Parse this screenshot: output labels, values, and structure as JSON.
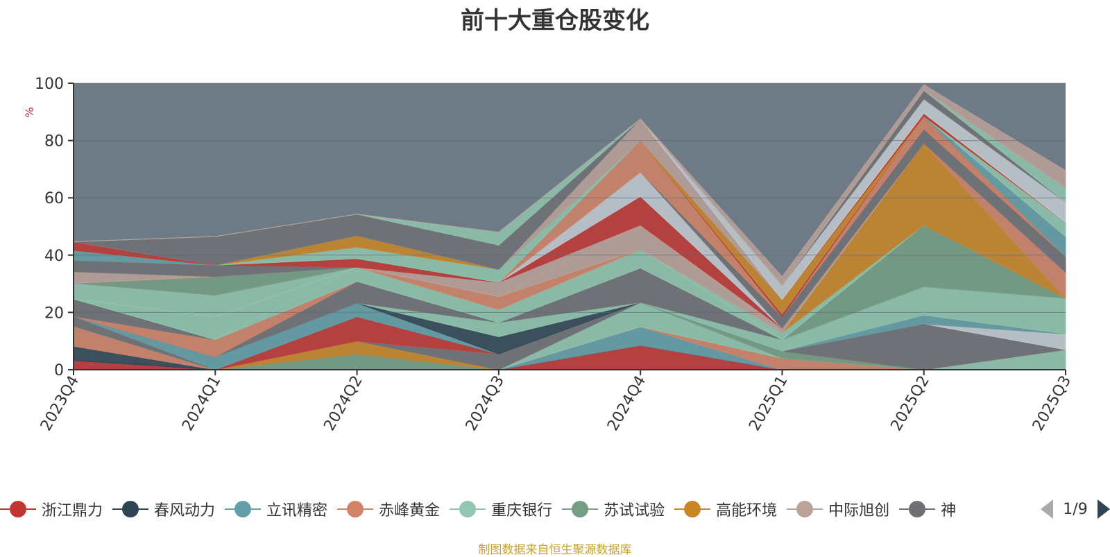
{
  "chart_data": {
    "type": "area",
    "title": "前十大重仓股变化",
    "ylabel": "%",
    "xlabel": "",
    "ylim": [
      0,
      100
    ],
    "yticks": [
      0,
      20,
      40,
      60,
      80,
      100
    ],
    "grid": true,
    "categories": [
      "2023Q4",
      "2024Q1",
      "2024Q2",
      "2024Q3",
      "2024Q4",
      "2025Q1",
      "2025Q2",
      "2025Q3"
    ],
    "series": [
      {
        "name": "浙江鼎力",
        "color": "#c23531",
        "values": [
          3.2,
          0,
          0,
          0,
          8.5,
          0,
          0,
          0
        ]
      },
      {
        "name": "春风动力",
        "color": "#2f4554",
        "values": [
          5.0,
          0,
          0,
          0,
          0,
          0,
          0,
          0
        ]
      },
      {
        "name": "立讯精密",
        "color": "#61a0a8",
        "values": [
          0,
          0,
          0,
          0,
          6.5,
          0,
          0,
          0
        ]
      },
      {
        "name": "赤峰黄金",
        "color": "#d48265",
        "values": [
          7.0,
          0,
          0,
          0,
          0,
          4.0,
          0,
          0
        ]
      },
      {
        "name": "重庆银行",
        "color": "#91c7ae",
        "values": [
          0,
          0,
          0,
          0,
          8.5,
          0,
          0,
          7.0
        ]
      },
      {
        "name": "苏试试验",
        "color": "#749f83",
        "values": [
          0,
          0,
          5.5,
          0,
          0,
          2.5,
          0,
          0
        ]
      },
      {
        "name": "高能环境",
        "color": "#ca8622",
        "values": [
          0,
          0,
          4.5,
          0,
          0,
          0,
          0,
          0
        ]
      },
      {
        "name": "中际旭创",
        "color": "#bda29a",
        "values": [
          0,
          0,
          0,
          0,
          0,
          0,
          0,
          0
        ]
      },
      {
        "name": "",
        "color": "#6e7074",
        "values": [
          3.5,
          0,
          0,
          5.5,
          0,
          0,
          16.0,
          0
        ]
      },
      {
        "name": "",
        "color": "#c4ccd3",
        "values": [
          0,
          0,
          0,
          0,
          0,
          0,
          0,
          5.5
        ]
      },
      {
        "name": "",
        "color": "#c23531",
        "values": [
          0,
          0,
          8.5,
          0,
          0,
          0,
          0,
          0
        ]
      },
      {
        "name": "",
        "color": "#61a0a8",
        "values": [
          0,
          4.5,
          4.8,
          0,
          0,
          0,
          3.0,
          0
        ]
      },
      {
        "name": "",
        "color": "#2f4554",
        "values": [
          0,
          0,
          0,
          6.0,
          0,
          0,
          0,
          0
        ]
      },
      {
        "name": "",
        "color": "#91c7ae",
        "values": [
          0,
          0,
          0,
          5.0,
          0,
          4.0,
          10.0,
          12.5
        ]
      },
      {
        "name": "",
        "color": "#6e7074",
        "values": [
          0,
          0,
          7.5,
          0,
          12.0,
          0,
          0,
          0
        ]
      },
      {
        "name": "",
        "color": "#d48265",
        "values": [
          0,
          6.0,
          0,
          0,
          0,
          0,
          0,
          0
        ]
      },
      {
        "name": "",
        "color": "#6e7074",
        "values": [
          6.0,
          0,
          0,
          0,
          0,
          0,
          0,
          0
        ]
      },
      {
        "name": "",
        "color": "#91c7ae",
        "values": [
          0,
          0,
          5.0,
          4.5,
          6.5,
          0,
          0,
          0
        ]
      },
      {
        "name": "",
        "color": "#749f83",
        "values": [
          0,
          0,
          0,
          0,
          0,
          0,
          21.5,
          0
        ]
      },
      {
        "name": "",
        "color": "#91c7ae",
        "values": [
          0,
          8.0,
          0,
          0,
          0,
          0,
          0,
          0
        ]
      },
      {
        "name": "",
        "color": "#91c7ae",
        "values": [
          5.5,
          7.5,
          0,
          0,
          0,
          2.5,
          0,
          0
        ]
      },
      {
        "name": "",
        "color": "#d48265",
        "values": [
          0,
          0,
          0,
          4.5,
          0,
          0,
          0,
          0
        ]
      },
      {
        "name": "",
        "color": "#bda29a",
        "values": [
          0,
          0,
          0,
          0,
          8.5,
          0,
          0,
          0
        ]
      },
      {
        "name": "",
        "color": "#749f83",
        "values": [
          0,
          6.5,
          0,
          0,
          0,
          0,
          0,
          0
        ]
      },
      {
        "name": "",
        "color": "#ca8622",
        "values": [
          0,
          0,
          0,
          0,
          0,
          0,
          28.5,
          0
        ]
      },
      {
        "name": "",
        "color": "#d48265",
        "values": [
          0,
          0,
          0,
          0,
          0,
          0,
          0,
          9.0
        ]
      },
      {
        "name": "",
        "color": "#bda29a",
        "values": [
          4.0,
          0,
          0,
          5.0,
          0,
          1.5,
          0,
          0
        ]
      },
      {
        "name": "",
        "color": "#c23531",
        "values": [
          0,
          0,
          0,
          0,
          10.0,
          0,
          0,
          0
        ]
      },
      {
        "name": "",
        "color": "#c4ccd3",
        "values": [
          0,
          0,
          0,
          0,
          8.5,
          0,
          0,
          0
        ]
      },
      {
        "name": "",
        "color": "#6e7074",
        "values": [
          4.0,
          4.0,
          0,
          0,
          0,
          4.0,
          5.0,
          5.5
        ]
      },
      {
        "name": "",
        "color": "#d48265",
        "values": [
          0,
          0,
          0,
          0,
          11.0,
          0,
          4.5,
          0
        ]
      },
      {
        "name": "",
        "color": "#c23531",
        "values": [
          0,
          0,
          3.0,
          0,
          0,
          1.0,
          0,
          0
        ]
      },
      {
        "name": "",
        "color": "#61a0a8",
        "values": [
          3.5,
          0,
          0,
          0,
          0,
          0,
          0,
          7.0
        ]
      },
      {
        "name": "",
        "color": "#91c7ae",
        "values": [
          0,
          0,
          4.0,
          4.5,
          0,
          0,
          0,
          5.0
        ]
      },
      {
        "name": "",
        "color": "#ca8622",
        "values": [
          0,
          0,
          4.0,
          0,
          0,
          5.0,
          0,
          0
        ]
      },
      {
        "name": "",
        "color": "#c23531",
        "values": [
          3.0,
          0,
          0,
          0,
          0,
          0,
          1.0,
          0
        ]
      },
      {
        "name": "",
        "color": "#bda29a",
        "values": [
          0,
          0,
          0,
          0,
          7.5,
          0,
          0,
          0
        ]
      },
      {
        "name": "",
        "color": "#c4ccd3",
        "values": [
          0,
          0,
          0,
          0,
          0,
          5.0,
          5.0,
          7.0
        ]
      },
      {
        "name": "",
        "color": "#6e7074",
        "values": [
          0,
          10.0,
          7.5,
          8.5,
          0,
          0,
          3.0,
          0
        ]
      },
      {
        "name": "",
        "color": "#91c7ae",
        "values": [
          0,
          0,
          0,
          4.5,
          0,
          0,
          0,
          5.0
        ]
      },
      {
        "name": "",
        "color": "#bda29a",
        "values": [
          0,
          0,
          0,
          0,
          0,
          3.0,
          2.0,
          6.0
        ]
      }
    ],
    "remainder_color": "#6e7b87"
  },
  "legend": {
    "items": [
      {
        "name": "浙江鼎力",
        "color": "#c23531"
      },
      {
        "name": "春风动力",
        "color": "#2f4554"
      },
      {
        "name": "立讯精密",
        "color": "#61a0a8"
      },
      {
        "name": "赤峰黄金",
        "color": "#d48265"
      },
      {
        "name": "重庆银行",
        "color": "#91c7ae"
      },
      {
        "name": "苏试试验",
        "color": "#749f83"
      },
      {
        "name": "高能环境",
        "color": "#ca8622"
      },
      {
        "name": "中际旭创",
        "color": "#bda29a"
      },
      {
        "name": "神",
        "color": "#6e7074"
      }
    ],
    "pager": "1/9"
  },
  "source_note": "制图数据来自恒生聚源数据库"
}
